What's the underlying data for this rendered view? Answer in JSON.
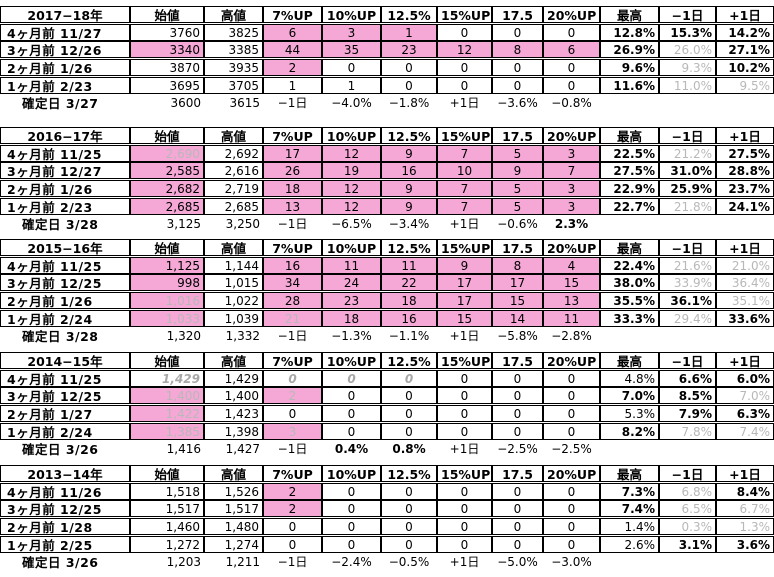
{
  "colors": {
    "pink": "#f5a7d6",
    "gray_text": "#b8b8b8"
  },
  "columns": [
    "",
    "始値",
    "高値",
    "7%UP",
    "10%UP",
    "12.5%",
    "15%UP",
    "17.5",
    "20%UP",
    "最高",
    "−1日",
    "+1日"
  ],
  "blocks": [
    {
      "year": "2017−18年",
      "rows": [
        {
          "label": "4ヶ月前 11/27",
          "cells": [
            {
              "v": "3760"
            },
            {
              "v": "3825"
            },
            {
              "v": "6",
              "bg": "pink"
            },
            {
              "v": "3",
              "bg": "pink"
            },
            {
              "v": "1",
              "bg": "pink"
            },
            {
              "v": "0"
            },
            {
              "v": "0"
            },
            {
              "v": "0"
            },
            {
              "v": "12.8%",
              "b": true
            },
            {
              "v": "15.3%",
              "b": true
            },
            {
              "v": "14.2%",
              "b": true
            }
          ]
        },
        {
          "label": "3ヶ月前 12/26",
          "cells": [
            {
              "v": "3340",
              "bg": "pink"
            },
            {
              "v": "3385"
            },
            {
              "v": "44",
              "bg": "pink"
            },
            {
              "v": "35",
              "bg": "pink"
            },
            {
              "v": "23",
              "bg": "pink"
            },
            {
              "v": "12",
              "bg": "pink"
            },
            {
              "v": "8",
              "bg": "pink"
            },
            {
              "v": "6",
              "bg": "pink"
            },
            {
              "v": "26.9%",
              "b": true
            },
            {
              "v": "26.0%",
              "g": true
            },
            {
              "v": "27.1%",
              "b": true
            }
          ]
        },
        {
          "label": "2ヶ月前 1/26",
          "cells": [
            {
              "v": "3870"
            },
            {
              "v": "3935"
            },
            {
              "v": "2",
              "bg": "pink"
            },
            {
              "v": "0"
            },
            {
              "v": "0"
            },
            {
              "v": "0"
            },
            {
              "v": "0"
            },
            {
              "v": "0"
            },
            {
              "v": "9.6%",
              "b": true
            },
            {
              "v": "9.3%",
              "g": true
            },
            {
              "v": "10.2%",
              "b": true
            }
          ]
        },
        {
          "label": "1ヶ月前 2/23",
          "cells": [
            {
              "v": "3695"
            },
            {
              "v": "3705"
            },
            {
              "v": "1"
            },
            {
              "v": "1"
            },
            {
              "v": "0"
            },
            {
              "v": "0"
            },
            {
              "v": "0"
            },
            {
              "v": "0"
            },
            {
              "v": "11.6%",
              "b": true
            },
            {
              "v": "11.0%",
              "g": true
            },
            {
              "v": "9.5%",
              "g": true
            }
          ]
        }
      ],
      "kakutei": {
        "label": "確定日 3/27",
        "cells": [
          "3600",
          "3615",
          "−1日",
          "−4.0%",
          "−1.8%",
          "+1日",
          "−3.6%",
          "−0.8%"
        ],
        "bold": []
      }
    },
    {
      "year": "2016−17年",
      "rows": [
        {
          "label": "4ヶ月前 11/25",
          "cells": [
            {
              "v": "2,690",
              "bg": "pink",
              "g": true
            },
            {
              "v": "2,692"
            },
            {
              "v": "17",
              "bg": "pink"
            },
            {
              "v": "12",
              "bg": "pink"
            },
            {
              "v": "9",
              "bg": "pink"
            },
            {
              "v": "7",
              "bg": "pink"
            },
            {
              "v": "5",
              "bg": "pink"
            },
            {
              "v": "3",
              "bg": "pink"
            },
            {
              "v": "22.5%",
              "b": true
            },
            {
              "v": "21.2%",
              "g": true
            },
            {
              "v": "27.5%",
              "b": true
            }
          ]
        },
        {
          "label": "3ヶ月前 12/27",
          "cells": [
            {
              "v": "2,585",
              "bg": "pink"
            },
            {
              "v": "2,616"
            },
            {
              "v": "26",
              "bg": "pink"
            },
            {
              "v": "19",
              "bg": "pink"
            },
            {
              "v": "16",
              "bg": "pink"
            },
            {
              "v": "10",
              "bg": "pink"
            },
            {
              "v": "9",
              "bg": "pink"
            },
            {
              "v": "7",
              "bg": "pink"
            },
            {
              "v": "27.5%",
              "b": true
            },
            {
              "v": "31.0%",
              "b": true
            },
            {
              "v": "28.8%",
              "b": true
            }
          ]
        },
        {
          "label": "2ヶ月前 1/26",
          "cells": [
            {
              "v": "2,682",
              "bg": "pink"
            },
            {
              "v": "2,719"
            },
            {
              "v": "18",
              "bg": "pink"
            },
            {
              "v": "12",
              "bg": "pink"
            },
            {
              "v": "9",
              "bg": "pink"
            },
            {
              "v": "7",
              "bg": "pink"
            },
            {
              "v": "5",
              "bg": "pink"
            },
            {
              "v": "3",
              "bg": "pink"
            },
            {
              "v": "22.9%",
              "b": true
            },
            {
              "v": "25.9%",
              "b": true
            },
            {
              "v": "23.7%",
              "b": true
            }
          ]
        },
        {
          "label": "1ヶ月前 2/23",
          "cells": [
            {
              "v": "2,685",
              "bg": "pink"
            },
            {
              "v": "2,685"
            },
            {
              "v": "13",
              "bg": "pink"
            },
            {
              "v": "12",
              "bg": "pink"
            },
            {
              "v": "9",
              "bg": "pink"
            },
            {
              "v": "7",
              "bg": "pink"
            },
            {
              "v": "5",
              "bg": "pink"
            },
            {
              "v": "3",
              "bg": "pink"
            },
            {
              "v": "22.7%",
              "b": true
            },
            {
              "v": "21.8%",
              "g": true
            },
            {
              "v": "24.1%",
              "b": true
            }
          ]
        }
      ],
      "kakutei": {
        "label": "確定日 3/28",
        "cells": [
          "3,125",
          "3,250",
          "−1日",
          "−6.5%",
          "−3.4%",
          "+1日",
          "−0.6%",
          "2.3%"
        ],
        "bold": [
          7
        ]
      }
    },
    {
      "year": "2015−16年",
      "rows": [
        {
          "label": "4ヶ月前 11/25",
          "cells": [
            {
              "v": "1,125",
              "bg": "pink"
            },
            {
              "v": "1,144"
            },
            {
              "v": "16",
              "bg": "pink"
            },
            {
              "v": "11",
              "bg": "pink"
            },
            {
              "v": "11",
              "bg": "pink"
            },
            {
              "v": "9",
              "bg": "pink"
            },
            {
              "v": "8",
              "bg": "pink"
            },
            {
              "v": "4",
              "bg": "pink"
            },
            {
              "v": "22.4%",
              "b": true
            },
            {
              "v": "21.6%",
              "g": true
            },
            {
              "v": "21.0%",
              "g": true
            }
          ]
        },
        {
          "label": "3ヶ月前 12/25",
          "cells": [
            {
              "v": "998",
              "bg": "pink"
            },
            {
              "v": "1,015"
            },
            {
              "v": "34",
              "bg": "pink"
            },
            {
              "v": "24",
              "bg": "pink"
            },
            {
              "v": "22",
              "bg": "pink"
            },
            {
              "v": "17",
              "bg": "pink"
            },
            {
              "v": "17",
              "bg": "pink"
            },
            {
              "v": "15",
              "bg": "pink"
            },
            {
              "v": "38.0%",
              "b": true
            },
            {
              "v": "33.9%",
              "g": true
            },
            {
              "v": "36.4%",
              "g": true
            }
          ]
        },
        {
          "label": "2ヶ月前 1/26",
          "cells": [
            {
              "v": "1,016",
              "bg": "pink",
              "g": true
            },
            {
              "v": "1,022"
            },
            {
              "v": "28",
              "bg": "pink"
            },
            {
              "v": "23",
              "bg": "pink"
            },
            {
              "v": "18",
              "bg": "pink"
            },
            {
              "v": "17",
              "bg": "pink"
            },
            {
              "v": "15",
              "bg": "pink"
            },
            {
              "v": "13",
              "bg": "pink"
            },
            {
              "v": "35.5%",
              "b": true
            },
            {
              "v": "36.1%",
              "b": true
            },
            {
              "v": "35.1%",
              "g": true
            }
          ]
        },
        {
          "label": "1ヶ月前 2/24",
          "cells": [
            {
              "v": "1,033",
              "bg": "pink",
              "g": true
            },
            {
              "v": "1,039"
            },
            {
              "v": "21",
              "bg": "pink",
              "g": true
            },
            {
              "v": "18",
              "bg": "pink"
            },
            {
              "v": "16",
              "bg": "pink"
            },
            {
              "v": "15",
              "bg": "pink"
            },
            {
              "v": "14",
              "bg": "pink"
            },
            {
              "v": "11",
              "bg": "pink"
            },
            {
              "v": "33.3%",
              "b": true
            },
            {
              "v": "29.4%",
              "g": true
            },
            {
              "v": "33.6%",
              "b": true
            }
          ]
        }
      ],
      "kakutei": {
        "label": "確定日 3/28",
        "cells": [
          "1,320",
          "1,332",
          "−1日",
          "−1.3%",
          "−1.1%",
          "+1日",
          "−5.8%",
          "−2.8%"
        ],
        "bold": []
      }
    },
    {
      "year": "2014−15年",
      "rows": [
        {
          "label": "4ヶ月前 11/25",
          "cells": [
            {
              "v": "1,429",
              "gi": true
            },
            {
              "v": "1,429"
            },
            {
              "v": "0",
              "gi": true
            },
            {
              "v": "0",
              "gi": true
            },
            {
              "v": "0",
              "gi": true
            },
            {
              "v": "0"
            },
            {
              "v": "0"
            },
            {
              "v": "0"
            },
            {
              "v": "4.8%"
            },
            {
              "v": "6.6%",
              "b": true
            },
            {
              "v": "6.0%",
              "b": true
            }
          ]
        },
        {
          "label": "3ヶ月前 12/25",
          "cells": [
            {
              "v": "1,400",
              "bg": "pink",
              "g": true
            },
            {
              "v": "1,400"
            },
            {
              "v": "2",
              "bg": "pink",
              "g": true
            },
            {
              "v": "0"
            },
            {
              "v": "0"
            },
            {
              "v": "0"
            },
            {
              "v": "0"
            },
            {
              "v": "0"
            },
            {
              "v": "7.0%",
              "b": true
            },
            {
              "v": "8.5%",
              "b": true
            },
            {
              "v": "7.0%",
              "g": true
            }
          ]
        },
        {
          "label": "2ヶ月前 1/27",
          "cells": [
            {
              "v": "1,422",
              "bg": "pink",
              "g": true
            },
            {
              "v": "1,423"
            },
            {
              "v": "0"
            },
            {
              "v": "0"
            },
            {
              "v": "0"
            },
            {
              "v": "0"
            },
            {
              "v": "0"
            },
            {
              "v": "0"
            },
            {
              "v": "5.3%"
            },
            {
              "v": "7.9%",
              "b": true
            },
            {
              "v": "6.3%",
              "b": true
            }
          ]
        },
        {
          "label": "1ヶ月前 2/24",
          "cells": [
            {
              "v": "1,385",
              "bg": "pink",
              "g": true
            },
            {
              "v": "1,398"
            },
            {
              "v": "3",
              "bg": "pink",
              "g": true
            },
            {
              "v": "0"
            },
            {
              "v": "0"
            },
            {
              "v": "0"
            },
            {
              "v": "0"
            },
            {
              "v": "0"
            },
            {
              "v": "8.2%",
              "b": true
            },
            {
              "v": "7.8%",
              "g": true
            },
            {
              "v": "7.4%",
              "g": true
            }
          ]
        }
      ],
      "kakutei": {
        "label": "確定日 3/26",
        "cells": [
          "1,416",
          "1,427",
          "−1日",
          "0.4%",
          "0.8%",
          "+1日",
          "−2.5%",
          "−2.5%"
        ],
        "bold": [
          3,
          4
        ]
      }
    },
    {
      "year": "2013−14年",
      "rows": [
        {
          "label": "4ヶ月前 11/26",
          "cells": [
            {
              "v": "1,518"
            },
            {
              "v": "1,526"
            },
            {
              "v": "2",
              "bg": "pink"
            },
            {
              "v": "0"
            },
            {
              "v": "0"
            },
            {
              "v": "0"
            },
            {
              "v": "0"
            },
            {
              "v": "0"
            },
            {
              "v": "7.3%",
              "b": true
            },
            {
              "v": "6.8%",
              "g": true
            },
            {
              "v": "8.4%",
              "b": true
            }
          ]
        },
        {
          "label": "3ヶ月前 12/25",
          "cells": [
            {
              "v": "1,517"
            },
            {
              "v": "1,517"
            },
            {
              "v": "2",
              "bg": "pink"
            },
            {
              "v": "0"
            },
            {
              "v": "0"
            },
            {
              "v": "0"
            },
            {
              "v": "0"
            },
            {
              "v": "0"
            },
            {
              "v": "7.4%",
              "b": true
            },
            {
              "v": "6.5%",
              "g": true
            },
            {
              "v": "6.7%",
              "g": true
            }
          ]
        },
        {
          "label": "2ヶ月前 1/28",
          "cells": [
            {
              "v": "1,460"
            },
            {
              "v": "1,480"
            },
            {
              "v": "0"
            },
            {
              "v": "0"
            },
            {
              "v": "0"
            },
            {
              "v": "0"
            },
            {
              "v": "0"
            },
            {
              "v": "0"
            },
            {
              "v": "1.4%"
            },
            {
              "v": "0.3%",
              "g": true
            },
            {
              "v": "1.3%",
              "g": true
            }
          ]
        },
        {
          "label": "1ヶ月前 2/25",
          "cells": [
            {
              "v": "1,272"
            },
            {
              "v": "1,274"
            },
            {
              "v": "0"
            },
            {
              "v": "0"
            },
            {
              "v": "0"
            },
            {
              "v": "0"
            },
            {
              "v": "0"
            },
            {
              "v": "0"
            },
            {
              "v": "2.6%"
            },
            {
              "v": "3.1%",
              "b": true
            },
            {
              "v": "3.6%",
              "b": true
            }
          ]
        }
      ],
      "kakutei": {
        "label": "確定日 3/26",
        "cells": [
          "1,203",
          "1,211",
          "−1日",
          "−2.4%",
          "−0.5%",
          "+1日",
          "−5.0%",
          "−3.0%"
        ],
        "bold": []
      }
    }
  ]
}
